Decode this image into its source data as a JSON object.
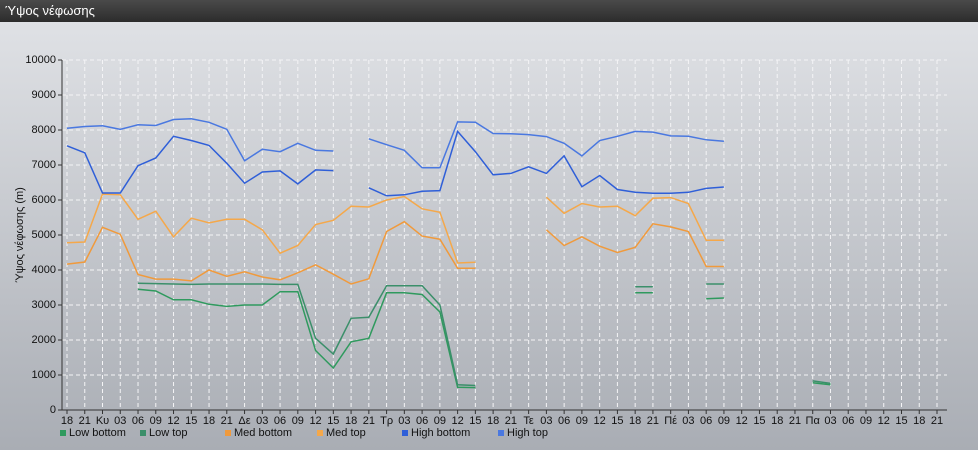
{
  "window_title": "Ύψος νέφωσης",
  "chart_data": {
    "type": "line",
    "ylabel": "Ύψος νέφωσης (m)",
    "categories": [
      "18",
      "21",
      "Κυ",
      "03",
      "06",
      "09",
      "12",
      "15",
      "18",
      "21",
      "Δε",
      "03",
      "06",
      "09",
      "12",
      "15",
      "18",
      "21",
      "Τρ",
      "03",
      "06",
      "09",
      "12",
      "15",
      "18",
      "21",
      "Τε",
      "03",
      "06",
      "09",
      "12",
      "15",
      "18",
      "21",
      "Πέ",
      "03",
      "06",
      "09",
      "12",
      "15",
      "18",
      "21",
      "Πα",
      "03",
      "06",
      "09",
      "12",
      "15",
      "18",
      "21"
    ],
    "ylim": [
      0,
      10000
    ],
    "yticks": [
      0,
      1000,
      2000,
      3000,
      4000,
      5000,
      6000,
      7000,
      8000,
      9000,
      10000
    ],
    "grid": true,
    "series": [
      {
        "name": "Low bottom",
        "color": "#2f9a5e",
        "values": [
          null,
          null,
          null,
          null,
          3450,
          3400,
          3150,
          3150,
          3020,
          2960,
          3000,
          3000,
          3380,
          3380,
          1700,
          1200,
          1950,
          2050,
          3350,
          3350,
          3300,
          2800,
          650,
          640,
          null,
          null,
          null,
          null,
          null,
          null,
          null,
          null,
          3350,
          3350,
          null,
          null,
          3180,
          3200,
          null,
          null,
          null,
          null,
          780,
          720,
          null,
          null,
          null,
          null,
          null,
          null
        ]
      },
      {
        "name": "Low top",
        "color": "#3b8f6a",
        "values": [
          null,
          null,
          null,
          null,
          3620,
          3610,
          3600,
          3590,
          3600,
          3600,
          3600,
          3600,
          3590,
          3590,
          2050,
          1600,
          2620,
          2650,
          3550,
          3550,
          3550,
          3000,
          720,
          700,
          null,
          null,
          null,
          null,
          null,
          null,
          null,
          null,
          3520,
          3520,
          null,
          null,
          3600,
          3600,
          null,
          null,
          null,
          null,
          830,
          760,
          null,
          null,
          null,
          null,
          null,
          null
        ]
      },
      {
        "name": "Med bottom",
        "color": "#f09a3c",
        "values": [
          4170,
          4230,
          5220,
          5020,
          3870,
          3740,
          3740,
          3690,
          4000,
          3820,
          3950,
          3800,
          3720,
          3920,
          4150,
          3880,
          3600,
          3750,
          5100,
          5380,
          4970,
          4880,
          4050,
          4050,
          null,
          null,
          null,
          5150,
          4700,
          4950,
          4680,
          4500,
          4650,
          5320,
          5230,
          5100,
          4100,
          4100,
          null,
          null,
          null,
          null,
          null,
          null,
          null,
          null,
          null,
          null,
          null,
          null
        ]
      },
      {
        "name": "Med top",
        "color": "#f5a84a",
        "values": [
          4780,
          4800,
          6170,
          6150,
          5450,
          5680,
          4950,
          5480,
          5350,
          5450,
          5450,
          5150,
          4480,
          4700,
          5300,
          5420,
          5820,
          5800,
          6000,
          6100,
          5750,
          5650,
          4200,
          4220,
          null,
          null,
          null,
          6080,
          5620,
          5900,
          5800,
          5820,
          5550,
          6050,
          6070,
          5900,
          4850,
          4850,
          null,
          null,
          null,
          null,
          null,
          null,
          null,
          null,
          null,
          null,
          null,
          null
        ]
      },
      {
        "name": "High bottom",
        "color": "#2f5fd8",
        "values": [
          7550,
          7350,
          6200,
          6200,
          6980,
          7200,
          7820,
          7700,
          7560,
          7050,
          6480,
          6800,
          6830,
          6460,
          6860,
          6840,
          null,
          6350,
          6120,
          6150,
          6250,
          6270,
          7960,
          7380,
          6720,
          6760,
          6950,
          6760,
          7260,
          6380,
          6700,
          6300,
          6220,
          6190,
          6190,
          6220,
          6330,
          6370,
          null,
          null,
          null,
          null,
          null,
          null,
          null,
          null,
          null,
          null,
          null,
          null
        ]
      },
      {
        "name": "High top",
        "color": "#4a78e0",
        "values": [
          8050,
          8100,
          8120,
          8020,
          8150,
          8130,
          8300,
          8320,
          8220,
          8020,
          7120,
          7450,
          7380,
          7620,
          7420,
          7400,
          null,
          7750,
          7580,
          7420,
          6920,
          6920,
          8230,
          8220,
          7900,
          7890,
          7870,
          7810,
          7620,
          7260,
          7700,
          7820,
          7960,
          7940,
          7830,
          7820,
          7720,
          7680,
          null,
          null,
          null,
          null,
          null,
          null,
          null,
          null,
          null,
          null,
          null,
          null
        ]
      }
    ]
  }
}
